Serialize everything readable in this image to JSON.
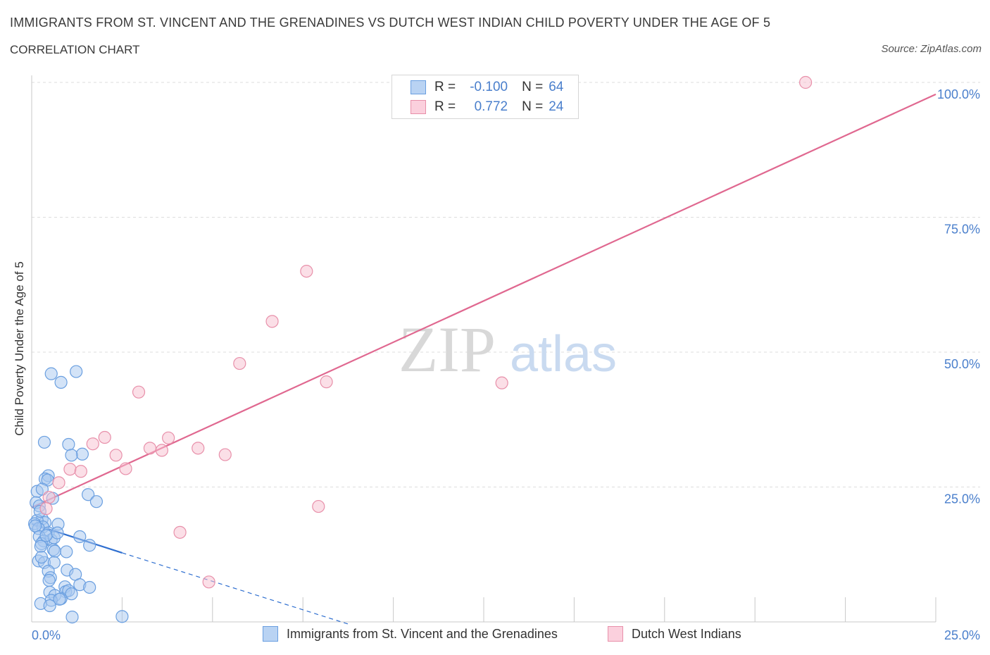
{
  "header": {
    "title": "IMMIGRANTS FROM ST. VINCENT AND THE GRENADINES VS DUTCH WEST INDIAN CHILD POVERTY UNDER THE AGE OF 5",
    "subtitle": "CORRELATION CHART",
    "source": "Source: ZipAtlas.com"
  },
  "watermark": {
    "zip": "ZIP",
    "atlas": "atlas"
  },
  "legend_stats": [
    {
      "r_label": "R =",
      "r_value": "-0.100",
      "n_label": "N =",
      "n_value": "64"
    },
    {
      "r_label": "R =",
      "r_value": "0.772",
      "n_label": "N =",
      "n_value": "24"
    }
  ],
  "colors": {
    "blue_fill": "#a8c8f0",
    "blue_stroke": "#6a9fe0",
    "blue_line": "#2f6fd0",
    "pink_fill": "#f7bfd0",
    "pink_stroke": "#e890aa",
    "pink_line": "#e06890",
    "axis_text": "#4a7fcc",
    "grid": "#dddddd"
  },
  "chart_data": {
    "type": "scatter",
    "title": "IMMIGRANTS FROM ST. VINCENT AND THE GRENADINES VS DUTCH WEST INDIAN CHILD POVERTY UNDER THE AGE OF 5",
    "subtitle": "CORRELATION CHART",
    "ylabel": "Child Poverty Under the Age of 5",
    "xlabel": "",
    "xlim": [
      0,
      25
    ],
    "ylim": [
      0,
      100
    ],
    "x_tick_labels": [
      {
        "value": 0,
        "label": "0.0%"
      },
      {
        "value": 25,
        "label": "25.0%"
      }
    ],
    "y_tick_labels": [
      {
        "value": 25,
        "label": "25.0%"
      },
      {
        "value": 50,
        "label": "50.0%"
      },
      {
        "value": 75,
        "label": "75.0%"
      },
      {
        "value": 100,
        "label": "100.0%"
      }
    ],
    "grid": "horizontal dashed",
    "legend_position": "bottom",
    "series": [
      {
        "name": "Immigrants from St. Vincent and the Grenadines",
        "color": "#a8c8f0",
        "R": -0.1,
        "N": 64,
        "points": [
          [
            0.54,
            46.0
          ],
          [
            0.81,
            44.4
          ],
          [
            1.23,
            46.4
          ],
          [
            0.35,
            33.3
          ],
          [
            1.02,
            32.9
          ],
          [
            1.4,
            31.1
          ],
          [
            1.1,
            30.9
          ],
          [
            0.46,
            27.1
          ],
          [
            0.37,
            26.5
          ],
          [
            0.44,
            26.3
          ],
          [
            0.15,
            24.2
          ],
          [
            0.29,
            24.6
          ],
          [
            1.56,
            23.6
          ],
          [
            0.58,
            22.9
          ],
          [
            1.79,
            22.3
          ],
          [
            0.12,
            22.1
          ],
          [
            0.21,
            21.5
          ],
          [
            0.29,
            19.1
          ],
          [
            0.37,
            18.4
          ],
          [
            0.15,
            18.8
          ],
          [
            0.73,
            18.1
          ],
          [
            0.08,
            18.2
          ],
          [
            0.31,
            17.6
          ],
          [
            0.19,
            17.3
          ],
          [
            0.1,
            17.8
          ],
          [
            0.46,
            16.5
          ],
          [
            0.21,
            15.8
          ],
          [
            0.54,
            15.2
          ],
          [
            0.33,
            15.0
          ],
          [
            0.62,
            15.6
          ],
          [
            0.27,
            14.5
          ],
          [
            1.33,
            15.8
          ],
          [
            0.25,
            14.0
          ],
          [
            1.6,
            14.2
          ],
          [
            0.6,
            13.4
          ],
          [
            0.64,
            13.1
          ],
          [
            0.96,
            13.0
          ],
          [
            0.19,
            11.3
          ],
          [
            0.35,
            11.0
          ],
          [
            0.62,
            11.0
          ],
          [
            0.98,
            9.6
          ],
          [
            0.46,
            9.4
          ],
          [
            1.21,
            8.8
          ],
          [
            0.52,
            8.2
          ],
          [
            0.48,
            7.7
          ],
          [
            1.33,
            6.9
          ],
          [
            1.6,
            6.4
          ],
          [
            0.92,
            6.5
          ],
          [
            0.5,
            5.5
          ],
          [
            0.94,
            5.6
          ],
          [
            1.02,
            5.8
          ],
          [
            1.1,
            5.2
          ],
          [
            0.64,
            4.9
          ],
          [
            0.81,
            4.3
          ],
          [
            0.54,
            4.0
          ],
          [
            0.77,
            4.2
          ],
          [
            0.25,
            3.4
          ],
          [
            0.5,
            3.0
          ],
          [
            1.12,
            0.9
          ],
          [
            2.5,
            1.0
          ],
          [
            0.27,
            12.0
          ],
          [
            0.4,
            16.0
          ],
          [
            0.23,
            20.5
          ],
          [
            0.71,
            16.5
          ]
        ],
        "trend": {
          "x_solid": [
            0,
            2.5
          ],
          "y_solid": [
            18.2,
            12.8
          ],
          "x_dashed": [
            2.5,
            8.8
          ],
          "y_dashed": [
            12.8,
            -0.5
          ]
        }
      },
      {
        "name": "Dutch West Indians",
        "color": "#f7bfd0",
        "R": 0.772,
        "N": 24,
        "points": [
          [
            21.4,
            100.0
          ],
          [
            7.6,
            65.0
          ],
          [
            6.65,
            55.7
          ],
          [
            5.75,
            47.9
          ],
          [
            8.15,
            44.5
          ],
          [
            13.0,
            44.3
          ],
          [
            2.96,
            42.6
          ],
          [
            2.02,
            34.2
          ],
          [
            3.78,
            34.1
          ],
          [
            1.69,
            33.0
          ],
          [
            3.27,
            32.2
          ],
          [
            4.6,
            32.2
          ],
          [
            3.6,
            31.8
          ],
          [
            2.33,
            30.9
          ],
          [
            5.35,
            31.0
          ],
          [
            2.6,
            28.4
          ],
          [
            1.06,
            28.3
          ],
          [
            1.36,
            27.9
          ],
          [
            0.75,
            25.8
          ],
          [
            0.48,
            23.1
          ],
          [
            7.93,
            21.4
          ],
          [
            0.4,
            21.0
          ],
          [
            4.1,
            16.6
          ],
          [
            4.9,
            7.4
          ]
        ],
        "trend": {
          "x": [
            0,
            25
          ],
          "y": [
            21.2,
            97.8
          ]
        }
      }
    ]
  },
  "bottom_legend": [
    {
      "label": "Immigrants from St. Vincent and the Grenadines"
    },
    {
      "label": "Dutch West Indians"
    }
  ]
}
